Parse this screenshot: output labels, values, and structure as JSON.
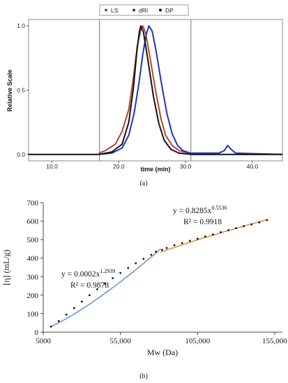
{
  "chart_data": [
    {
      "panel_label": "(a)",
      "type": "line",
      "xlabel": "time (min)",
      "ylabel": "Relative Scale",
      "xlim": [
        6.5,
        44.5
      ],
      "ylim": [
        -0.05,
        1.05
      ],
      "x_ticks": [
        10.0,
        20.0,
        30.0,
        40.0
      ],
      "x_tick_labels": [
        "10.0",
        "20.0",
        "30.0",
        "40.0"
      ],
      "y_ticks": [
        0.0,
        0.5,
        1.0
      ],
      "y_tick_labels": [
        "0.0",
        "0.5",
        "1.0"
      ],
      "vertical_markers": [
        17.1,
        30.8
      ],
      "legend": {
        "position": "top-center",
        "entries": [
          "LS",
          "dRI",
          "DP"
        ]
      },
      "series": [
        {
          "name": "LS",
          "color": "#b5452a",
          "points": [
            [
              17.0,
              0.01
            ],
            [
              18.0,
              0.03
            ],
            [
              19.5,
              0.08
            ],
            [
              20.5,
              0.18
            ],
            [
              21.5,
              0.35
            ],
            [
              22.2,
              0.6
            ],
            [
              22.8,
              0.85
            ],
            [
              23.3,
              0.97
            ],
            [
              23.6,
              1.0
            ],
            [
              24.0,
              0.95
            ],
            [
              24.7,
              0.75
            ],
            [
              25.5,
              0.5
            ],
            [
              26.3,
              0.28
            ],
            [
              27.0,
              0.15
            ],
            [
              28.0,
              0.07
            ],
            [
              29.0,
              0.03
            ],
            [
              30.5,
              0.01
            ]
          ]
        },
        {
          "name": "dRI",
          "color": "#2230c8",
          "points": [
            [
              17.0,
              0.0
            ],
            [
              19.0,
              0.01
            ],
            [
              20.5,
              0.05
            ],
            [
              21.5,
              0.15
            ],
            [
              22.3,
              0.32
            ],
            [
              23.0,
              0.55
            ],
            [
              23.6,
              0.78
            ],
            [
              24.1,
              0.93
            ],
            [
              24.5,
              1.0
            ],
            [
              25.0,
              0.96
            ],
            [
              25.6,
              0.8
            ],
            [
              26.4,
              0.55
            ],
            [
              27.2,
              0.32
            ],
            [
              28.0,
              0.16
            ],
            [
              28.8,
              0.07
            ],
            [
              29.6,
              0.03
            ],
            [
              30.7,
              0.01
            ],
            [
              31.0,
              0.01
            ],
            [
              35.0,
              0.01
            ],
            [
              35.8,
              0.03
            ],
            [
              36.3,
              0.07
            ],
            [
              36.8,
              0.04
            ],
            [
              37.5,
              0.01
            ],
            [
              44.5,
              0.0
            ]
          ]
        },
        {
          "name": "DP",
          "color": "#111111",
          "points": [
            [
              6.5,
              0.0
            ],
            [
              17.0,
              0.0
            ],
            [
              19.0,
              0.02
            ],
            [
              20.5,
              0.08
            ],
            [
              21.5,
              0.25
            ],
            [
              22.2,
              0.52
            ],
            [
              22.7,
              0.8
            ],
            [
              23.1,
              0.96
            ],
            [
              23.3,
              1.0
            ],
            [
              23.7,
              0.95
            ],
            [
              24.4,
              0.72
            ],
            [
              25.2,
              0.45
            ],
            [
              26.0,
              0.24
            ],
            [
              26.8,
              0.11
            ],
            [
              27.8,
              0.04
            ],
            [
              29.0,
              0.01
            ],
            [
              31.0,
              0.0
            ],
            [
              44.5,
              0.0
            ]
          ]
        }
      ]
    },
    {
      "panel_label": "(b)",
      "type": "scatter",
      "xlabel": "Mw (Da)",
      "ylabel": "[η] (mL/g)",
      "xlim": [
        5000,
        160000
      ],
      "ylim": [
        0,
        700
      ],
      "x_ticks": [
        5000,
        55000,
        105000,
        155000
      ],
      "x_tick_labels": [
        "5000",
        "55,000",
        "105,000",
        "155,000"
      ],
      "y_ticks": [
        0,
        100,
        200,
        300,
        400,
        500,
        600,
        700
      ],
      "y_tick_labels": [
        "0",
        "100",
        "200",
        "300",
        "400",
        "500",
        "600",
        "700"
      ],
      "annotations": [
        {
          "equation_base": "y = 0.0002x",
          "exponent": "1.2939",
          "r2_label": "R² = 0.9878"
        },
        {
          "equation_base": "y = 0.8285x",
          "exponent": "0.5536",
          "r2_label": "R² = 0.9918"
        }
      ],
      "series": [
        {
          "name": "",
          "marker": "dot",
          "color": "#111111",
          "points": [
            [
              10000,
              30
            ],
            [
              15000,
              60
            ],
            [
              20000,
              95
            ],
            [
              25000,
              130
            ],
            [
              30000,
              165
            ],
            [
              35000,
              200
            ],
            [
              40000,
              232
            ],
            [
              45000,
              262
            ],
            [
              50000,
              292
            ],
            [
              55000,
              320
            ],
            [
              60000,
              347
            ],
            [
              65000,
              372
            ],
            [
              70000,
              396
            ],
            [
              75000,
              418
            ],
            [
              78000,
              435
            ],
            [
              82000,
              445
            ],
            [
              85000,
              455
            ],
            [
              90000,
              470
            ],
            [
              95000,
              482
            ],
            [
              100000,
              494
            ],
            [
              105000,
              505
            ],
            [
              110000,
              517
            ],
            [
              115000,
              528
            ],
            [
              120000,
              540
            ],
            [
              125000,
              551
            ],
            [
              130000,
              562
            ],
            [
              135000,
              573
            ],
            [
              140000,
              583
            ],
            [
              145000,
              593
            ],
            [
              150000,
              606
            ]
          ]
        }
      ],
      "trendlines": [
        {
          "color": "#5b8fd6",
          "coef": 0.0002,
          "exp": 1.2939,
          "range": [
            10000,
            81000
          ]
        },
        {
          "color": "#e08a2e",
          "coef": 0.8285,
          "exp": 0.5536,
          "range": [
            81000,
            150000
          ]
        }
      ]
    }
  ]
}
